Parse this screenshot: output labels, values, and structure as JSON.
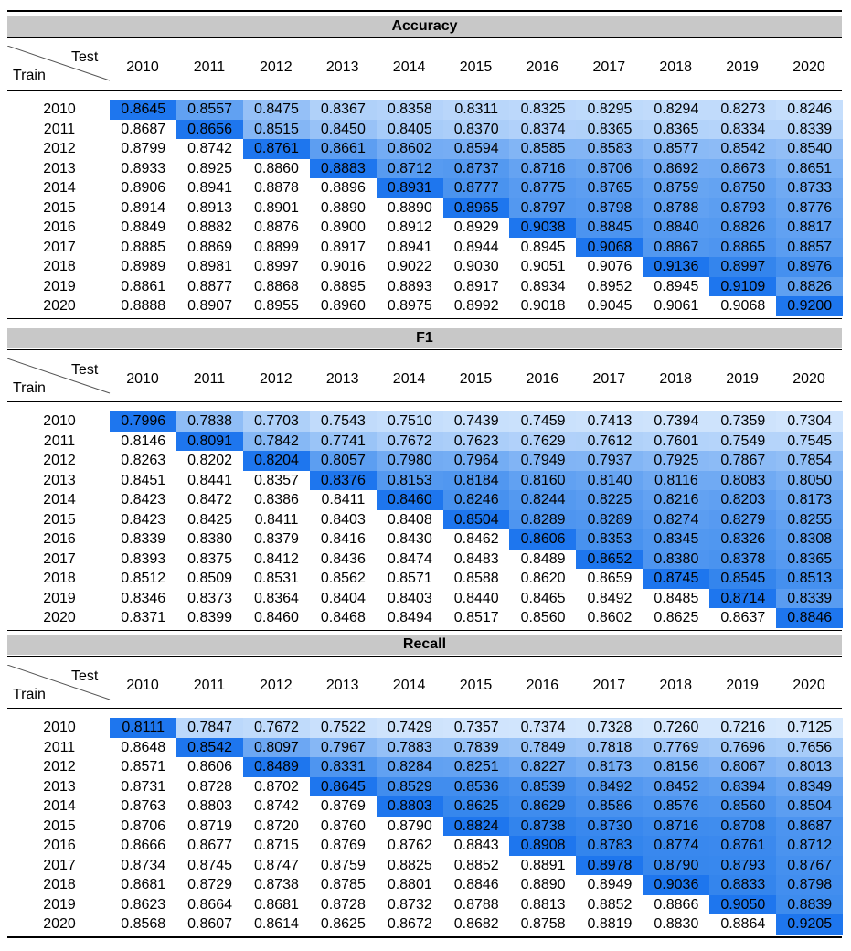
{
  "corner": {
    "test": "Test",
    "train": "Train"
  },
  "years": [
    "2010",
    "2011",
    "2012",
    "2013",
    "2014",
    "2015",
    "2016",
    "2017",
    "2018",
    "2019",
    "2020"
  ],
  "chart_data": [
    {
      "type": "table",
      "title": "Accuracy",
      "row_header": "Train",
      "column_header": "Test",
      "rows": [
        [
          "0.8645",
          "0.8557",
          "0.8475",
          "0.8367",
          "0.8358",
          "0.8311",
          "0.8325",
          "0.8295",
          "0.8294",
          "0.8273",
          "0.8246"
        ],
        [
          "0.8687",
          "0.8656",
          "0.8515",
          "0.8450",
          "0.8405",
          "0.8370",
          "0.8374",
          "0.8365",
          "0.8365",
          "0.8334",
          "0.8339"
        ],
        [
          "0.8799",
          "0.8742",
          "0.8761",
          "0.8661",
          "0.8602",
          "0.8594",
          "0.8585",
          "0.8583",
          "0.8577",
          "0.8542",
          "0.8540"
        ],
        [
          "0.8933",
          "0.8925",
          "0.8860",
          "0.8883",
          "0.8712",
          "0.8737",
          "0.8716",
          "0.8706",
          "0.8692",
          "0.8673",
          "0.8651"
        ],
        [
          "0.8906",
          "0.8941",
          "0.8878",
          "0.8896",
          "0.8931",
          "0.8777",
          "0.8775",
          "0.8765",
          "0.8759",
          "0.8750",
          "0.8733"
        ],
        [
          "0.8914",
          "0.8913",
          "0.8901",
          "0.8890",
          "0.8890",
          "0.8965",
          "0.8797",
          "0.8798",
          "0.8788",
          "0.8793",
          "0.8776"
        ],
        [
          "0.8849",
          "0.8882",
          "0.8876",
          "0.8900",
          "0.8912",
          "0.8929",
          "0.9038",
          "0.8845",
          "0.8840",
          "0.8826",
          "0.8817"
        ],
        [
          "0.8885",
          "0.8869",
          "0.8899",
          "0.8917",
          "0.8941",
          "0.8944",
          "0.8945",
          "0.9068",
          "0.8867",
          "0.8865",
          "0.8857"
        ],
        [
          "0.8989",
          "0.8981",
          "0.8997",
          "0.9016",
          "0.9022",
          "0.9030",
          "0.9051",
          "0.9076",
          "0.9136",
          "0.8997",
          "0.8976"
        ],
        [
          "0.8861",
          "0.8877",
          "0.8868",
          "0.8895",
          "0.8893",
          "0.8917",
          "0.8934",
          "0.8952",
          "0.8945",
          "0.9109",
          "0.8826"
        ],
        [
          "0.8888",
          "0.8907",
          "0.8955",
          "0.8960",
          "0.8975",
          "0.8992",
          "0.9018",
          "0.9045",
          "0.9061",
          "0.9068",
          "0.9200"
        ]
      ]
    },
    {
      "type": "table",
      "title": "F1",
      "row_header": "Train",
      "column_header": "Test",
      "rows": [
        [
          "0.7996",
          "0.7838",
          "0.7703",
          "0.7543",
          "0.7510",
          "0.7439",
          "0.7459",
          "0.7413",
          "0.7394",
          "0.7359",
          "0.7304"
        ],
        [
          "0.8146",
          "0.8091",
          "0.7842",
          "0.7741",
          "0.7672",
          "0.7623",
          "0.7629",
          "0.7612",
          "0.7601",
          "0.7549",
          "0.7545"
        ],
        [
          "0.8263",
          "0.8202",
          "0.8204",
          "0.8057",
          "0.7980",
          "0.7964",
          "0.7949",
          "0.7937",
          "0.7925",
          "0.7867",
          "0.7854"
        ],
        [
          "0.8451",
          "0.8441",
          "0.8357",
          "0.8376",
          "0.8153",
          "0.8184",
          "0.8160",
          "0.8140",
          "0.8116",
          "0.8083",
          "0.8050"
        ],
        [
          "0.8423",
          "0.8472",
          "0.8386",
          "0.8411",
          "0.8460",
          "0.8246",
          "0.8244",
          "0.8225",
          "0.8216",
          "0.8203",
          "0.8173"
        ],
        [
          "0.8423",
          "0.8425",
          "0.8411",
          "0.8403",
          "0.8408",
          "0.8504",
          "0.8289",
          "0.8289",
          "0.8274",
          "0.8279",
          "0.8255"
        ],
        [
          "0.8339",
          "0.8380",
          "0.8379",
          "0.8416",
          "0.8430",
          "0.8462",
          "0.8606",
          "0.8353",
          "0.8345",
          "0.8326",
          "0.8308"
        ],
        [
          "0.8393",
          "0.8375",
          "0.8412",
          "0.8436",
          "0.8474",
          "0.8483",
          "0.8489",
          "0.8652",
          "0.8380",
          "0.8378",
          "0.8365"
        ],
        [
          "0.8512",
          "0.8509",
          "0.8531",
          "0.8562",
          "0.8571",
          "0.8588",
          "0.8620",
          "0.8659",
          "0.8745",
          "0.8545",
          "0.8513"
        ],
        [
          "0.8346",
          "0.8373",
          "0.8364",
          "0.8404",
          "0.8403",
          "0.8440",
          "0.8465",
          "0.8492",
          "0.8485",
          "0.8714",
          "0.8339"
        ],
        [
          "0.8371",
          "0.8399",
          "0.8460",
          "0.8468",
          "0.8494",
          "0.8517",
          "0.8560",
          "0.8602",
          "0.8625",
          "0.8637",
          "0.8846"
        ]
      ]
    },
    {
      "type": "table",
      "title": "Recall",
      "row_header": "Train",
      "column_header": "Test",
      "rows": [
        [
          "0.8111",
          "0.7847",
          "0.7672",
          "0.7522",
          "0.7429",
          "0.7357",
          "0.7374",
          "0.7328",
          "0.7260",
          "0.7216",
          "0.7125"
        ],
        [
          "0.8648",
          "0.8542",
          "0.8097",
          "0.7967",
          "0.7883",
          "0.7839",
          "0.7849",
          "0.7818",
          "0.7769",
          "0.7696",
          "0.7656"
        ],
        [
          "0.8571",
          "0.8606",
          "0.8489",
          "0.8331",
          "0.8284",
          "0.8251",
          "0.8227",
          "0.8173",
          "0.8156",
          "0.8067",
          "0.8013"
        ],
        [
          "0.8731",
          "0.8728",
          "0.8702",
          "0.8645",
          "0.8529",
          "0.8536",
          "0.8539",
          "0.8492",
          "0.8452",
          "0.8394",
          "0.8349"
        ],
        [
          "0.8763",
          "0.8803",
          "0.8742",
          "0.8769",
          "0.8803",
          "0.8625",
          "0.8629",
          "0.8586",
          "0.8576",
          "0.8560",
          "0.8504"
        ],
        [
          "0.8706",
          "0.8719",
          "0.8720",
          "0.8760",
          "0.8790",
          "0.8824",
          "0.8738",
          "0.8730",
          "0.8716",
          "0.8708",
          "0.8687"
        ],
        [
          "0.8666",
          "0.8677",
          "0.8715",
          "0.8769",
          "0.8762",
          "0.8843",
          "0.8908",
          "0.8783",
          "0.8774",
          "0.8761",
          "0.8712"
        ],
        [
          "0.8734",
          "0.8745",
          "0.8747",
          "0.8759",
          "0.8825",
          "0.8852",
          "0.8891",
          "0.8978",
          "0.8790",
          "0.8793",
          "0.8767"
        ],
        [
          "0.8681",
          "0.8729",
          "0.8738",
          "0.8785",
          "0.8801",
          "0.8846",
          "0.8890",
          "0.8949",
          "0.9036",
          "0.8833",
          "0.8798"
        ],
        [
          "0.8623",
          "0.8664",
          "0.8681",
          "0.8728",
          "0.8732",
          "0.8788",
          "0.8813",
          "0.8852",
          "0.8866",
          "0.9050",
          "0.8839"
        ],
        [
          "0.8568",
          "0.8607",
          "0.8614",
          "0.8625",
          "0.8672",
          "0.8682",
          "0.8758",
          "0.8819",
          "0.8830",
          "0.8864",
          "0.9205"
        ]
      ]
    }
  ]
}
